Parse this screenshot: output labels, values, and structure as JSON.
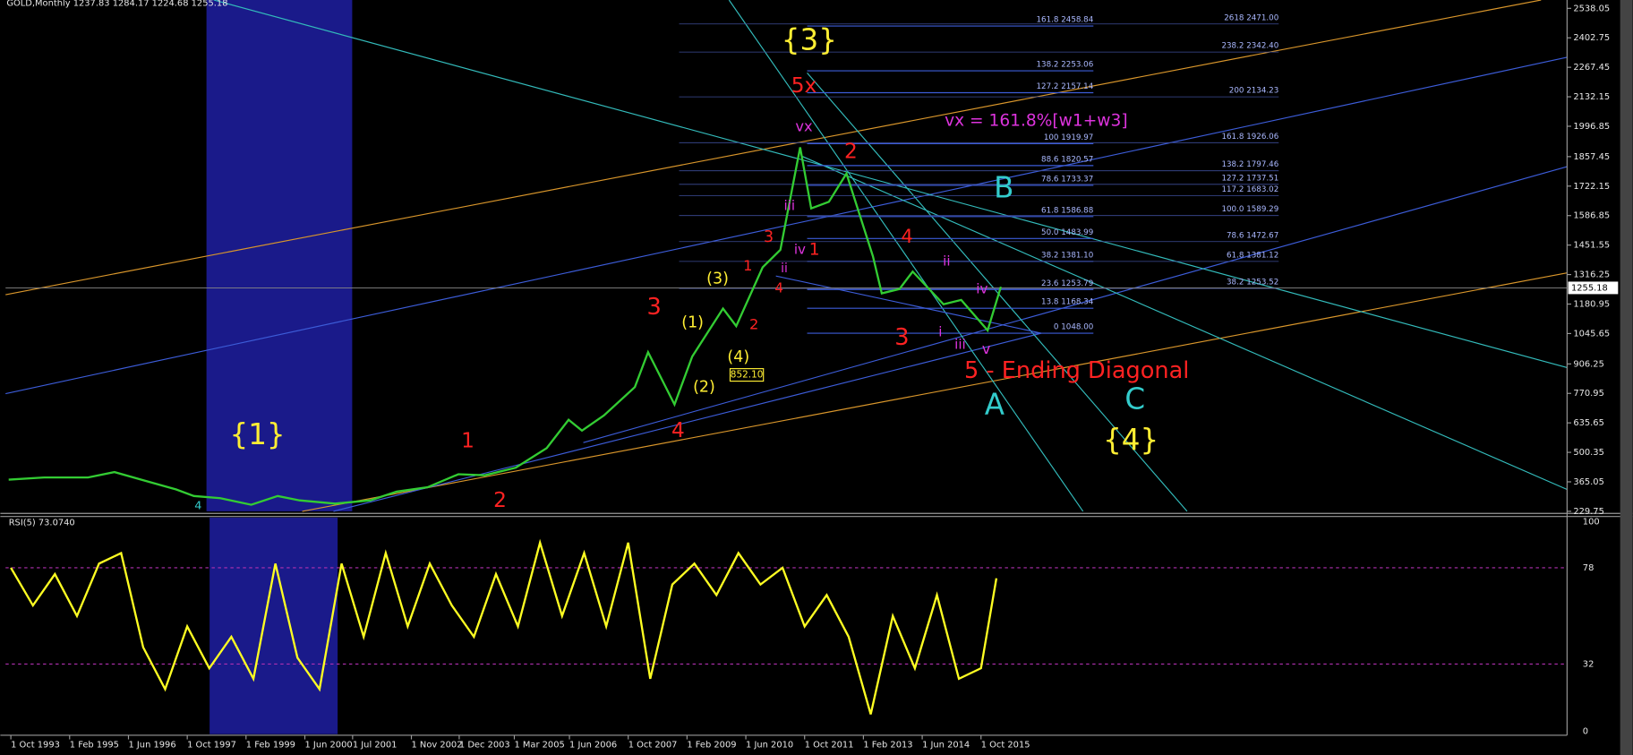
{
  "chart_data": [
    {
      "type": "line",
      "title": "GOLD,Monthly  1237.83 1284.17 1224.68 1255.18",
      "color": "#33cc33",
      "xlim": [
        1993.63,
        2029.04
      ],
      "ylim": [
        229.75,
        2538.05
      ],
      "yticks": [
        2538.05,
        2402.75,
        2267.45,
        2132.15,
        1996.85,
        1857.45,
        1722.15,
        1586.85,
        1451.55,
        1316.25,
        1180.95,
        1045.65,
        906.25,
        770.95,
        635.65,
        500.35,
        365.05,
        229.75
      ],
      "last_price": 1255.18,
      "x": [
        1993.7,
        1994.5,
        1995.5,
        1996.1,
        1996.8,
        1997.5,
        1997.9,
        1998.5,
        1999.2,
        1999.8,
        2000.3,
        2001.1,
        2001.9,
        2002.5,
        2003.2,
        2003.9,
        2004.5,
        2005.2,
        2005.9,
        2006.4,
        2006.7,
        2007.2,
        2007.9,
        2008.2,
        2008.8,
        2009.2,
        2009.9,
        2010.2,
        2010.8,
        2011.2,
        2011.65,
        2011.9,
        2012.3,
        2012.7,
        2013.3,
        2013.5,
        2013.9,
        2014.2,
        2014.9,
        2015.3,
        2015.9,
        2016.2
      ],
      "values": [
        375,
        385,
        385,
        410,
        370,
        330,
        300,
        290,
        260,
        300,
        280,
        265,
        280,
        320,
        340,
        400,
        395,
        430,
        520,
        650,
        600,
        670,
        800,
        960,
        720,
        940,
        1160,
        1080,
        1350,
        1430,
        1900,
        1620,
        1650,
        1780,
        1400,
        1230,
        1250,
        1330,
        1180,
        1200,
        1060,
        1260
      ],
      "fib_left": [
        {
          "text": "161.8 2458.84"
        },
        {
          "text": "138.2 2253.06"
        },
        {
          "text": "127.2 2157.14"
        },
        {
          "text": "100 1919.97"
        },
        {
          "text": "88.6 1820.57"
        },
        {
          "text": "78.6 1733.37"
        },
        {
          "text": "61.8 1586.88"
        },
        {
          "text": "50.0 1483.99"
        },
        {
          "text": "38.2 1381.10"
        },
        {
          "text": "23.6 1253.79"
        },
        {
          "text": "13.8 1168.34"
        },
        {
          "text": "0 1048.00"
        }
      ],
      "fib_right": [
        {
          "text": "2618 2471.00"
        },
        {
          "text": "238.2 2342.40"
        },
        {
          "text": "200 2134.23"
        },
        {
          "text": "161.8 1926.06"
        },
        {
          "text": "138.2 1797.46"
        },
        {
          "text": "127.2 1737.51"
        },
        {
          "text": "117.2 1683.02"
        },
        {
          "text": "100.0 1589.29"
        },
        {
          "text": "78.6 1472.67"
        },
        {
          "text": "61.8 1381.12"
        },
        {
          "text": "38.2 1253.52"
        }
      ],
      "annotations": [
        {
          "text": "{3}",
          "color": "#ffee33"
        },
        {
          "text": "5x",
          "color": "#ff2222"
        },
        {
          "text": "vx",
          "color": "#dd33dd"
        },
        {
          "text": "vx = 161.8%[w1+w3]",
          "color": "#dd33dd"
        },
        {
          "text": "2",
          "color": "#ff2222"
        },
        {
          "text": "B",
          "color": "#33cccc"
        },
        {
          "text": "iii",
          "color": "#dd33dd"
        },
        {
          "text": "3",
          "color": "#ff2222"
        },
        {
          "text": "iv",
          "color": "#dd33dd"
        },
        {
          "text": "1",
          "color": "#ff2222"
        },
        {
          "text": "4",
          "color": "#ff2222"
        },
        {
          "text": "ii",
          "color": "#dd33dd"
        },
        {
          "text": "1",
          "color": "#ff2222"
        },
        {
          "text": "ii",
          "color": "#dd33dd"
        },
        {
          "text": "(3)",
          "color": "#ffee33"
        },
        {
          "text": "4",
          "color": "#ff2222"
        },
        {
          "text": "iv",
          "color": "#dd33dd"
        },
        {
          "text": "3",
          "color": "#ff2222"
        },
        {
          "text": "(1)",
          "color": "#ffee33"
        },
        {
          "text": "2",
          "color": "#ff2222"
        },
        {
          "text": "3",
          "color": "#ff2222"
        },
        {
          "text": "i",
          "color": "#dd33dd"
        },
        {
          "text": "iii",
          "color": "#dd33dd"
        },
        {
          "text": "(4)",
          "color": "#ffee33"
        },
        {
          "text": "v",
          "color": "#dd33dd"
        },
        {
          "text": "852.10",
          "color": "#ffee33"
        },
        {
          "text": "5 - Ending Diagonal",
          "color": "#ff2222"
        },
        {
          "text": "(2)",
          "color": "#ffee33"
        },
        {
          "text": "C",
          "color": "#33cccc"
        },
        {
          "text": "A",
          "color": "#33cccc"
        },
        {
          "text": "4",
          "color": "#ff2222"
        },
        {
          "text": "{1}",
          "color": "#ffee33"
        },
        {
          "text": "{4}",
          "color": "#ffee33"
        },
        {
          "text": "1",
          "color": "#ff2222"
        },
        {
          "text": "2",
          "color": "#ff2222"
        },
        {
          "text": "4",
          "color": "#33cccc"
        }
      ]
    },
    {
      "type": "line",
      "title": "RSI(5) 73.0740",
      "color": "#ffff22",
      "xlim": [
        1993.63,
        2029.04
      ],
      "ylim": [
        0,
        100
      ],
      "yticks": [
        100,
        78,
        32,
        0
      ],
      "grid": true,
      "xticks": [
        {
          "value": 1993.75,
          "label": "1 Oct 1993"
        },
        {
          "value": 1995.083,
          "label": "1 Feb 1995"
        },
        {
          "value": 1996.417,
          "label": "1 Jun 1996"
        },
        {
          "value": 1997.75,
          "label": "1 Oct 1997"
        },
        {
          "value": 1999.083,
          "label": "1 Feb 1999"
        },
        {
          "value": 2000.417,
          "label": "1 Jun 2000"
        },
        {
          "value": 2001.5,
          "label": "1 Jul 2001"
        },
        {
          "value": 2002.833,
          "label": "1 Nov 2002"
        },
        {
          "value": 2003.917,
          "label": "1 Dec 2003"
        },
        {
          "value": 2005.167,
          "label": "1 Mar 2005"
        },
        {
          "value": 2006.417,
          "label": "1 Jun 2006"
        },
        {
          "value": 2007.75,
          "label": "1 Oct 2007"
        },
        {
          "value": 2009.083,
          "label": "1 Feb 2009"
        },
        {
          "value": 2010.417,
          "label": "1 Jun 2010"
        },
        {
          "value": 2011.75,
          "label": "1 Oct 2011"
        },
        {
          "value": 2013.083,
          "label": "1 Feb 2013"
        },
        {
          "value": 2014.417,
          "label": "1 Jun 2014"
        },
        {
          "value": 2015.75,
          "label": "1 Oct 2015"
        }
      ],
      "x": [
        1993.75,
        1994.25,
        1994.75,
        1995.25,
        1995.75,
        1996.25,
        1996.75,
        1997.25,
        1997.75,
        1998.25,
        1998.75,
        1999.25,
        1999.75,
        2000.25,
        2000.75,
        2001.25,
        2001.75,
        2002.25,
        2002.75,
        2003.25,
        2003.75,
        2004.25,
        2004.75,
        2005.25,
        2005.75,
        2006.25,
        2006.75,
        2007.25,
        2007.75,
        2008.25,
        2008.75,
        2009.25,
        2009.75,
        2010.25,
        2010.75,
        2011.25,
        2011.75,
        2012.25,
        2012.75,
        2013.25,
        2013.75,
        2014.25,
        2014.75,
        2015.25,
        2015.75,
        2016.1
      ],
      "values": [
        78,
        60,
        75,
        55,
        80,
        85,
        40,
        20,
        50,
        30,
        45,
        25,
        80,
        35,
        20,
        80,
        45,
        85,
        50,
        80,
        60,
        45,
        75,
        50,
        90,
        55,
        85,
        50,
        90,
        25,
        70,
        80,
        65,
        85,
        70,
        78,
        50,
        65,
        45,
        8,
        55,
        30,
        65,
        25,
        30,
        73
      ]
    }
  ]
}
